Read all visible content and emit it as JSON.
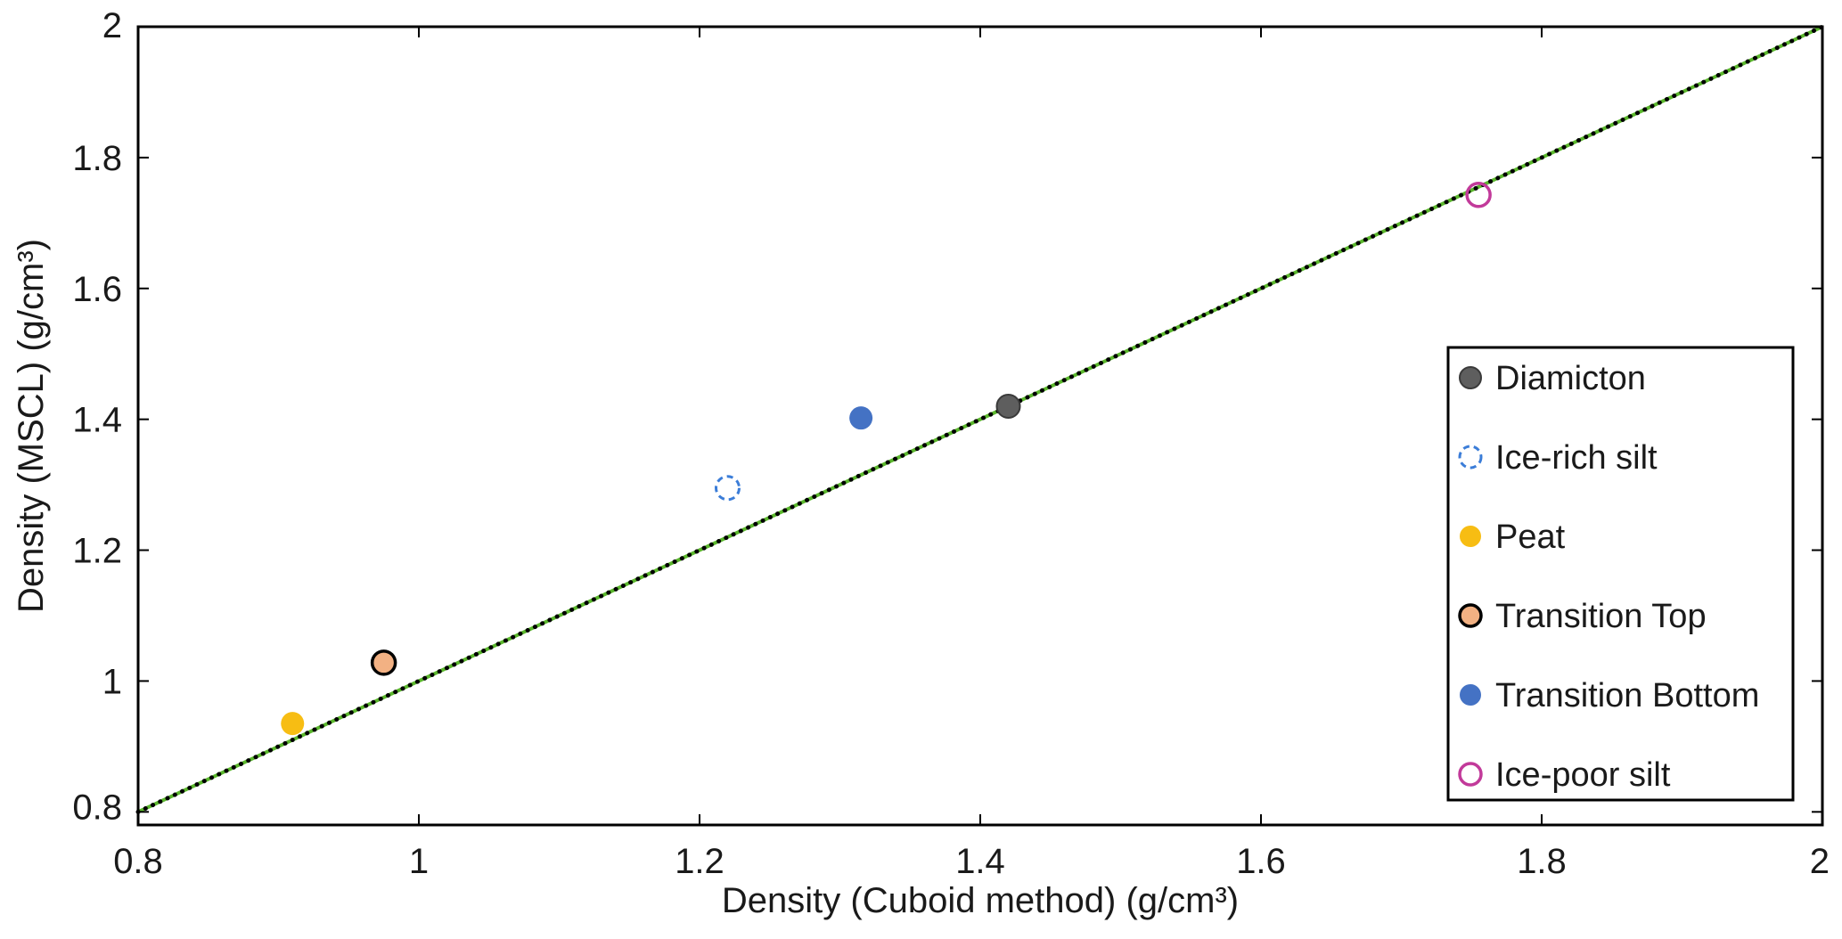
{
  "chart_data": {
    "type": "scatter",
    "xlabel": "Density (Cuboid method) (g/cm³)",
    "ylabel": "Density (MSCL) (g/cm³)",
    "xlim": [
      0.8,
      2
    ],
    "ylim": [
      0.78,
      2
    ],
    "xticks": [
      "0.8",
      "1",
      "1.2",
      "1.4",
      "1.6",
      "1.8",
      "2"
    ],
    "yticks": [
      "0.8",
      "1",
      "1.2",
      "1.4",
      "1.6",
      "1.8",
      "2"
    ],
    "grid": false,
    "legend_position": "bottom-right",
    "reference_line": {
      "x": [
        0.8,
        2
      ],
      "y": [
        0.8,
        2
      ],
      "style": "dotted",
      "color": "#000000",
      "underlay_color": "#5cb82e"
    },
    "series": [
      {
        "name": "Diamicton",
        "x": [
          1.42
        ],
        "y": [
          1.42
        ],
        "color": "#5e5e5e",
        "marker": "filled-circle-outlined"
      },
      {
        "name": "Ice-rich silt",
        "x": [
          1.22
        ],
        "y": [
          1.295
        ],
        "color": "#3b7dd8",
        "marker": "dashed-hollow-circle"
      },
      {
        "name": "Peat",
        "x": [
          0.91
        ],
        "y": [
          0.935
        ],
        "color": "#f7bd13",
        "marker": "filled-circle"
      },
      {
        "name": "Transition Top",
        "x": [
          0.975
        ],
        "y": [
          1.028
        ],
        "color": "#f2b183",
        "marker": "filled-circle-black-edge"
      },
      {
        "name": "Transition Bottom",
        "x": [
          1.315
        ],
        "y": [
          1.402
        ],
        "color": "#4472c4",
        "marker": "filled-circle"
      },
      {
        "name": "Ice-poor silt",
        "x": [
          1.755
        ],
        "y": [
          1.743
        ],
        "color": "#c23a9a",
        "marker": "hollow-circle"
      }
    ]
  }
}
